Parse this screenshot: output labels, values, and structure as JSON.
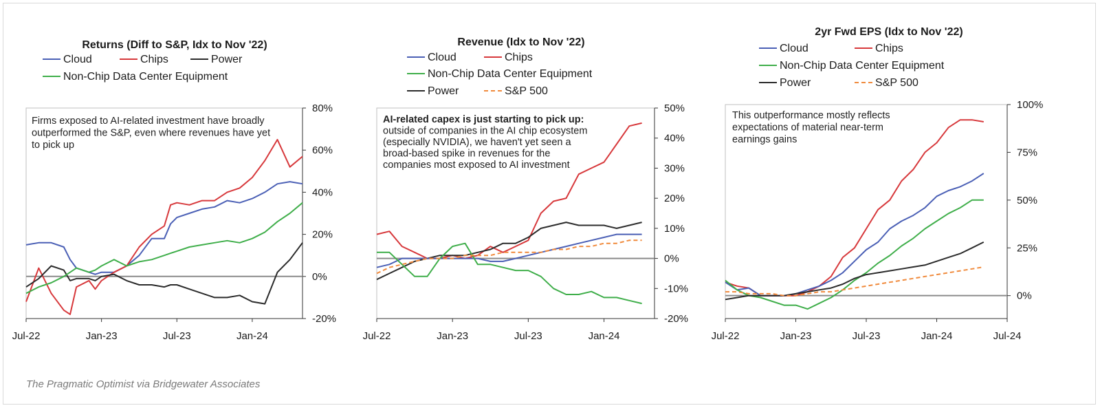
{
  "credit": "The Pragmatic Optimist via Bridgewater Associates",
  "colors": {
    "Cloud": "#4a5fb5",
    "Chips": "#d7383b",
    "Non-Chip Data Center Equipment": "#3fae4a",
    "Power": "#2b2b2b",
    "S&P 500": "#f08a3c",
    "zero_line": "#8a8a8a",
    "axis": "#333333"
  },
  "chart_data": [
    {
      "type": "line",
      "title": "Returns (Diff to S&P, Idx to Nov '22)",
      "legend": [
        "Cloud",
        "Chips",
        "Power",
        "Non-Chip Data Center Equipment"
      ],
      "annotation": "Firms exposed to AI-related investment have broadly outperformed the S&P, even where revenues have yet to pick up",
      "x_ticks": [
        "Jul-22",
        "Jan-23",
        "Jul-23",
        "Jan-24"
      ],
      "y_ticks": [
        "80%",
        "60%",
        "40%",
        "20%",
        "0%",
        "-20%"
      ],
      "ylim": [
        -20,
        80
      ],
      "xlim": [
        0,
        22
      ],
      "y_unit": "%",
      "series": [
        {
          "name": "Cloud",
          "x": [
            0,
            1,
            2,
            3,
            3.5,
            4,
            5,
            5.5,
            6,
            7,
            8,
            9,
            10,
            11,
            11.5,
            12,
            13,
            14,
            15,
            16,
            17,
            18,
            19,
            20,
            21,
            22
          ],
          "values": [
            15,
            16,
            16,
            14,
            8,
            4,
            2,
            1,
            2,
            2,
            5,
            10,
            18,
            18,
            25,
            28,
            30,
            32,
            33,
            36,
            35,
            37,
            40,
            44,
            45,
            44
          ]
        },
        {
          "name": "Chips",
          "x": [
            0,
            1,
            2,
            3,
            3.5,
            4,
            5,
            5.5,
            6,
            7,
            8,
            9,
            10,
            11,
            11.5,
            12,
            13,
            14,
            15,
            16,
            17,
            18,
            19,
            20,
            21,
            22
          ],
          "values": [
            -12,
            4,
            -8,
            -16,
            -18,
            -5,
            -2,
            -6,
            -2,
            2,
            5,
            14,
            20,
            24,
            34,
            35,
            34,
            36,
            36,
            40,
            42,
            47,
            55,
            65,
            52,
            57
          ]
        },
        {
          "name": "Power",
          "x": [
            0,
            1,
            2,
            3,
            3.5,
            4,
            5,
            5.5,
            6,
            7,
            8,
            9,
            10,
            11,
            11.5,
            12,
            13,
            14,
            15,
            16,
            17,
            18,
            19,
            20,
            21,
            22
          ],
          "values": [
            -5,
            -1,
            5,
            3,
            -2,
            -1,
            -1,
            -2,
            0,
            1,
            -2,
            -4,
            -4,
            -5,
            -4,
            -4,
            -6,
            -8,
            -10,
            -10,
            -9,
            -12,
            -13,
            2,
            8,
            16
          ]
        },
        {
          "name": "Non-Chip Data Center Equipment",
          "x": [
            0,
            1,
            2,
            3,
            3.5,
            4,
            5,
            5.5,
            6,
            7,
            8,
            9,
            10,
            11,
            11.5,
            12,
            13,
            14,
            15,
            16,
            17,
            18,
            19,
            20,
            21,
            22
          ],
          "values": [
            -8,
            -5,
            -3,
            0,
            2,
            4,
            2,
            3,
            5,
            8,
            5,
            7,
            8,
            10,
            11,
            12,
            14,
            15,
            16,
            17,
            16,
            18,
            21,
            26,
            30,
            35
          ]
        }
      ]
    },
    {
      "type": "line",
      "title": "Revenue (Idx to Nov '22)",
      "legend": [
        "Cloud",
        "Chips",
        "Non-Chip Data Center Equipment",
        "Power",
        "S&P 500"
      ],
      "annotation_bold": "AI-related capex is just starting to pick up:",
      "annotation": "outside of companies in the AI chip ecosystem (especially NVIDIA), we haven't yet seen a broad-based spike in revenues for the companies most exposed to AI investment",
      "x_ticks": [
        "Jul-22",
        "Jan-23",
        "Jul-23",
        "Jan-24"
      ],
      "y_ticks": [
        "50%",
        "40%",
        "30%",
        "20%",
        "10%",
        "0%",
        "-10%",
        "-20%"
      ],
      "ylim": [
        -20,
        50
      ],
      "xlim": [
        0,
        22
      ],
      "y_unit": "%",
      "series": [
        {
          "name": "Chips",
          "x": [
            0,
            1,
            2,
            3,
            4,
            5,
            6,
            7,
            8,
            9,
            10,
            11,
            12,
            13,
            14,
            15,
            16,
            17,
            18,
            19,
            20,
            21
          ],
          "values": [
            8,
            9,
            4,
            2,
            0,
            0,
            1,
            0,
            1,
            4,
            2,
            4,
            6,
            15,
            19,
            20,
            28,
            30,
            32,
            38,
            44,
            45
          ]
        },
        {
          "name": "Power",
          "x": [
            0,
            1,
            2,
            3,
            4,
            5,
            6,
            7,
            8,
            9,
            10,
            11,
            12,
            13,
            14,
            15,
            16,
            17,
            18,
            19,
            20,
            21
          ],
          "values": [
            -7,
            -5,
            -3,
            -1,
            0,
            1,
            1,
            1,
            2,
            3,
            5,
            5,
            7,
            10,
            11,
            12,
            11,
            11,
            11,
            10,
            11,
            12
          ]
        },
        {
          "name": "Cloud",
          "x": [
            0,
            1,
            2,
            3,
            4,
            5,
            6,
            7,
            8,
            9,
            10,
            11,
            12,
            13,
            14,
            15,
            16,
            17,
            18,
            19,
            20,
            21
          ],
          "values": [
            -3,
            -2,
            0,
            0,
            0,
            0,
            0,
            0,
            0,
            -1,
            -1,
            0,
            1,
            2,
            3,
            4,
            5,
            6,
            7,
            8,
            8,
            8
          ]
        },
        {
          "name": "Non-Chip Data Center Equipment",
          "x": [
            0,
            1,
            2,
            3,
            4,
            5,
            6,
            7,
            8,
            9,
            10,
            11,
            12,
            13,
            14,
            15,
            16,
            17,
            18,
            19,
            20,
            21
          ],
          "values": [
            2,
            2,
            -2,
            -6,
            -6,
            0,
            4,
            5,
            -2,
            -2,
            -3,
            -4,
            -4,
            -6,
            -10,
            -12,
            -12,
            -11,
            -13,
            -13,
            -14,
            -15
          ]
        },
        {
          "name": "S&P 500",
          "x": [
            0,
            1,
            2,
            3,
            4,
            5,
            6,
            7,
            8,
            9,
            10,
            11,
            12,
            13,
            14,
            15,
            16,
            17,
            18,
            19,
            20,
            21
          ],
          "values": [
            -5,
            -3,
            -2,
            -1,
            0,
            0,
            0,
            1,
            1,
            1,
            2,
            2,
            2,
            2,
            3,
            3,
            4,
            4,
            5,
            5,
            6,
            6
          ]
        }
      ]
    },
    {
      "type": "line",
      "title": "2yr Fwd EPS (Idx to Nov '22)",
      "legend": [
        "Cloud",
        "Chips",
        "Non-Chip Data Center Equipment",
        "Power",
        "S&P 500"
      ],
      "annotation": "This outperformance mostly reflects expectations of material near-term earnings gains",
      "x_ticks": [
        "Jul-22",
        "Jan-23",
        "Jul-23",
        "Jan-24",
        "Jul-24"
      ],
      "y_ticks": [
        "100%",
        "75%",
        "50%",
        "25%",
        "0%"
      ],
      "ylim": [
        -12,
        100
      ],
      "xlim": [
        0,
        24
      ],
      "y_unit": "%",
      "series": [
        {
          "name": "Chips",
          "x": [
            0,
            1,
            2,
            3,
            4,
            5,
            6,
            7,
            8,
            9,
            10,
            11,
            12,
            13,
            14,
            15,
            16,
            17,
            18,
            19,
            20,
            21,
            22
          ],
          "values": [
            7,
            5,
            4,
            0,
            0,
            0,
            0,
            2,
            5,
            10,
            20,
            25,
            35,
            45,
            50,
            60,
            66,
            75,
            80,
            88,
            92,
            92,
            91
          ]
        },
        {
          "name": "Cloud",
          "x": [
            0,
            1,
            2,
            3,
            4,
            5,
            6,
            7,
            8,
            9,
            10,
            11,
            12,
            13,
            14,
            15,
            16,
            17,
            18,
            19,
            20,
            21,
            22
          ],
          "values": [
            7,
            3,
            4,
            0,
            0,
            0,
            1,
            3,
            5,
            8,
            12,
            18,
            24,
            28,
            35,
            39,
            42,
            46,
            52,
            55,
            57,
            60,
            64
          ]
        },
        {
          "name": "Non-Chip Data Center Equipment",
          "x": [
            0,
            1,
            2,
            3,
            4,
            5,
            6,
            7,
            8,
            9,
            10,
            11,
            12,
            13,
            14,
            15,
            16,
            17,
            18,
            19,
            20,
            21,
            22
          ],
          "values": [
            8,
            3,
            0,
            -1,
            -3,
            -5,
            -5,
            -7,
            -4,
            -1,
            3,
            8,
            12,
            17,
            21,
            26,
            30,
            35,
            39,
            43,
            46,
            50,
            50
          ]
        },
        {
          "name": "Power",
          "x": [
            0,
            1,
            2,
            3,
            4,
            5,
            6,
            7,
            8,
            9,
            10,
            11,
            12,
            13,
            14,
            15,
            16,
            17,
            18,
            19,
            20,
            21,
            22
          ],
          "values": [
            -2,
            -1,
            0,
            0,
            0,
            0,
            1,
            2,
            3,
            4,
            6,
            9,
            11,
            12,
            13,
            14,
            15,
            16,
            18,
            20,
            22,
            25,
            28
          ]
        },
        {
          "name": "S&P 500",
          "x": [
            0,
            1,
            2,
            3,
            4,
            5,
            6,
            7,
            8,
            9,
            10,
            11,
            12,
            13,
            14,
            15,
            16,
            17,
            18,
            19,
            20,
            21,
            22
          ],
          "values": [
            2,
            2,
            1,
            1,
            1,
            0,
            0,
            1,
            2,
            2,
            3,
            4,
            5,
            6,
            7,
            8,
            9,
            10,
            11,
            12,
            13,
            14,
            15
          ]
        }
      ]
    }
  ]
}
